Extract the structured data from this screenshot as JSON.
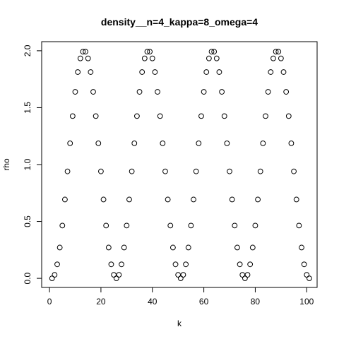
{
  "chart_data": {
    "type": "scatter",
    "title": "density__n=4_kappa=8_omega=4",
    "xlabel": "k",
    "ylabel": "rho",
    "xlim": [
      -3.04,
      104.04
    ],
    "ylim": [
      -0.08,
      2.08
    ],
    "x_ticks": [
      0,
      20,
      40,
      60,
      80,
      100
    ],
    "y_ticks": [
      0.0,
      0.5,
      1.0,
      1.5,
      2.0
    ],
    "x_tick_labels": [
      "0",
      "20",
      "40",
      "60",
      "80",
      "100"
    ],
    "y_tick_labels": [
      "0.0",
      "0.5",
      "1.0",
      "1.5",
      "2.0"
    ],
    "grid": false,
    "legend": "none",
    "marker": "open-circle",
    "color": "#000000",
    "x": [
      1,
      2,
      3,
      4,
      5,
      6,
      7,
      8,
      9,
      10,
      11,
      12,
      13,
      14,
      15,
      16,
      17,
      18,
      19,
      20,
      21,
      22,
      23,
      24,
      25,
      26,
      27,
      28,
      29,
      30,
      31,
      32,
      33,
      34,
      35,
      36,
      37,
      38,
      39,
      40,
      41,
      42,
      43,
      44,
      45,
      46,
      47,
      48,
      49,
      50,
      51,
      52,
      53,
      54,
      55,
      56,
      57,
      58,
      59,
      60,
      61,
      62,
      63,
      64,
      65,
      66,
      67,
      68,
      69,
      70,
      71,
      72,
      73,
      74,
      75,
      76,
      77,
      78,
      79,
      80,
      81,
      82,
      83,
      84,
      85,
      86,
      87,
      88,
      89,
      90,
      91,
      92,
      93,
      94,
      95,
      96,
      97,
      98,
      99,
      100,
      101
    ],
    "y": [
      0.0,
      0.031,
      0.123,
      0.271,
      0.464,
      0.693,
      0.94,
      1.187,
      1.426,
      1.639,
      1.813,
      1.933,
      1.992,
      1.992,
      1.933,
      1.813,
      1.639,
      1.426,
      1.187,
      0.94,
      0.693,
      0.464,
      0.271,
      0.123,
      0.031,
      0.0,
      0.031,
      0.123,
      0.271,
      0.464,
      0.693,
      0.94,
      1.187,
      1.426,
      1.639,
      1.813,
      1.933,
      1.992,
      1.992,
      1.933,
      1.813,
      1.639,
      1.426,
      1.187,
      0.94,
      0.693,
      0.464,
      0.271,
      0.123,
      0.031,
      0.0,
      0.031,
      0.123,
      0.271,
      0.464,
      0.693,
      0.94,
      1.187,
      1.426,
      1.639,
      1.813,
      1.933,
      1.992,
      1.992,
      1.933,
      1.813,
      1.639,
      1.426,
      1.187,
      0.94,
      0.693,
      0.464,
      0.271,
      0.123,
      0.031,
      0.0,
      0.031,
      0.123,
      0.271,
      0.464,
      0.693,
      0.94,
      1.187,
      1.426,
      1.639,
      1.813,
      1.933,
      1.992,
      1.992,
      1.933,
      1.813,
      1.639,
      1.426,
      1.187,
      0.94,
      0.693,
      0.464,
      0.271,
      0.123,
      0.031,
      0.0
    ]
  }
}
